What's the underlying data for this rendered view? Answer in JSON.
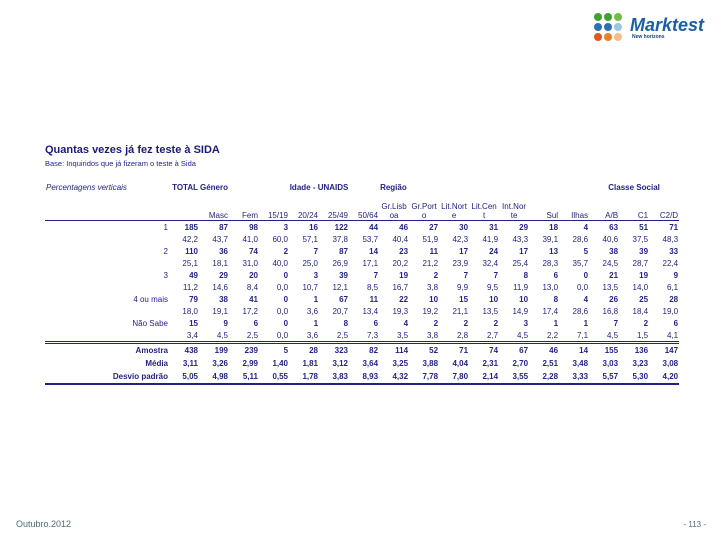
{
  "logo": {
    "brand": "Marktest",
    "tagline": "New horizons",
    "dot_colors": [
      "#3da32f",
      "#3da32f",
      "#6fbf44",
      "#2c6fb7",
      "#2c6fb7",
      "#9dc3e6",
      "#e2571d",
      "#ee7f22",
      "#f4bd8a"
    ],
    "brand_color": "#1d5fa5"
  },
  "slide": {
    "title": "Quantas vezes já fez teste à SIDA",
    "base": "Base: Inquiridos que já fizeram o teste à Sida",
    "note": "Percentagens verticais",
    "footer_left": "Outubro.2012",
    "footer_right": "- 113 -",
    "text_color": "#232387"
  },
  "table": {
    "group_header": [
      {
        "label": "TOTAL",
        "span": 1,
        "align": "right"
      },
      {
        "label": "Género",
        "span": 2,
        "align": "left"
      },
      {
        "label": "Idade - UNAIDS",
        "span": 4,
        "align": "center"
      },
      {
        "label": "Região",
        "span": 7,
        "align": "left"
      },
      {
        "label": "Classe Social",
        "span": 3,
        "align": "center"
      }
    ],
    "columns": [
      {
        "top": "",
        "bottom": "",
        "wrap": false
      },
      {
        "top": "",
        "bottom": "Masc",
        "wrap": false
      },
      {
        "top": "",
        "bottom": "Fem",
        "wrap": false
      },
      {
        "top": "",
        "bottom": "15/19",
        "wrap": false
      },
      {
        "top": "",
        "bottom": "20/24",
        "wrap": false
      },
      {
        "top": "",
        "bottom": "25/49",
        "wrap": false
      },
      {
        "top": "",
        "bottom": "50/64",
        "wrap": false
      },
      {
        "top": "Gr.Lisb",
        "bottom": "oa",
        "wrap": true
      },
      {
        "top": "Gr.Port",
        "bottom": "o",
        "wrap": true
      },
      {
        "top": "Lit.Nort",
        "bottom": "e",
        "wrap": true
      },
      {
        "top": "Lit.Cen",
        "bottom": "t",
        "wrap": true
      },
      {
        "top": "Int.Nor",
        "bottom": "te",
        "wrap": true
      },
      {
        "top": "",
        "bottom": "Sul",
        "wrap": false
      },
      {
        "top": "",
        "bottom": "Ilhas",
        "wrap": false
      },
      {
        "top": "",
        "bottom": "A/B",
        "wrap": false
      },
      {
        "top": "",
        "bottom": "C1",
        "wrap": false
      },
      {
        "top": "",
        "bottom": "C2/D",
        "wrap": false
      }
    ],
    "rows": [
      {
        "label": "1",
        "counts": [
          "185",
          "87",
          "98",
          "3",
          "16",
          "122",
          "44",
          "46",
          "27",
          "30",
          "31",
          "29",
          "18",
          "4",
          "63",
          "51",
          "71"
        ],
        "pcts": [
          "42,2",
          "43,7",
          "41,0",
          "60,0",
          "57,1",
          "37,8",
          "53,7",
          "40,4",
          "51,9",
          "42,3",
          "41,9",
          "43,3",
          "39,1",
          "28,6",
          "40,6",
          "37,5",
          "48,3"
        ]
      },
      {
        "label": "2",
        "counts": [
          "110",
          "36",
          "74",
          "2",
          "7",
          "87",
          "14",
          "23",
          "11",
          "17",
          "24",
          "17",
          "13",
          "5",
          "38",
          "39",
          "33"
        ],
        "pcts": [
          "25,1",
          "18,1",
          "31,0",
          "40,0",
          "25,0",
          "26,9",
          "17,1",
          "20,2",
          "21,2",
          "23,9",
          "32,4",
          "25,4",
          "28,3",
          "35,7",
          "24,5",
          "28,7",
          "22,4"
        ]
      },
      {
        "label": "3",
        "counts": [
          "49",
          "29",
          "20",
          "0",
          "3",
          "39",
          "7",
          "19",
          "2",
          "7",
          "7",
          "8",
          "6",
          "0",
          "21",
          "19",
          "9"
        ],
        "pcts": [
          "11,2",
          "14,6",
          "8,4",
          "0,0",
          "10,7",
          "12,1",
          "8,5",
          "16,7",
          "3,8",
          "9,9",
          "9,5",
          "11,9",
          "13,0",
          "0,0",
          "13,5",
          "14,0",
          "6,1"
        ]
      },
      {
        "label": "4 ou mais",
        "counts": [
          "79",
          "38",
          "41",
          "0",
          "1",
          "67",
          "11",
          "22",
          "10",
          "15",
          "10",
          "10",
          "8",
          "4",
          "26",
          "25",
          "28"
        ],
        "pcts": [
          "18,0",
          "19,1",
          "17,2",
          "0,0",
          "3,6",
          "20,7",
          "13,4",
          "19,3",
          "19,2",
          "21,1",
          "13,5",
          "14,9",
          "17,4",
          "28,6",
          "16,8",
          "18,4",
          "19,0"
        ]
      },
      {
        "label": "Não Sabe",
        "counts": [
          "15",
          "9",
          "6",
          "0",
          "1",
          "8",
          "6",
          "4",
          "2",
          "2",
          "2",
          "3",
          "1",
          "1",
          "7",
          "2",
          "6"
        ],
        "pcts": [
          "3,4",
          "4,5",
          "2,5",
          "0,0",
          "3,6",
          "2,5",
          "7,3",
          "3,5",
          "3,8",
          "2,8",
          "2,7",
          "4,5",
          "2,2",
          "7,1",
          "4,5",
          "1,5",
          "4,1"
        ]
      }
    ],
    "summary": [
      {
        "label": "Amostra",
        "values": [
          "438",
          "199",
          "239",
          "5",
          "28",
          "323",
          "82",
          "114",
          "52",
          "71",
          "74",
          "67",
          "46",
          "14",
          "155",
          "136",
          "147"
        ]
      },
      {
        "label": "Média",
        "values": [
          "3,11",
          "3,26",
          "2,99",
          "1,40",
          "1,81",
          "3,12",
          "3,64",
          "3,25",
          "3,88",
          "4,04",
          "2,31",
          "2,70",
          "2,51",
          "3,48",
          "3,03",
          "3,23",
          "3,08"
        ]
      },
      {
        "label": "Desvio padrão",
        "values": [
          "5,05",
          "4,98",
          "5,11",
          "0,55",
          "1,78",
          "3,83",
          "8,93",
          "4,32",
          "7,78",
          "7,80",
          "2,14",
          "3,55",
          "2,28",
          "3,33",
          "5,57",
          "5,30",
          "4,20"
        ]
      }
    ]
  }
}
